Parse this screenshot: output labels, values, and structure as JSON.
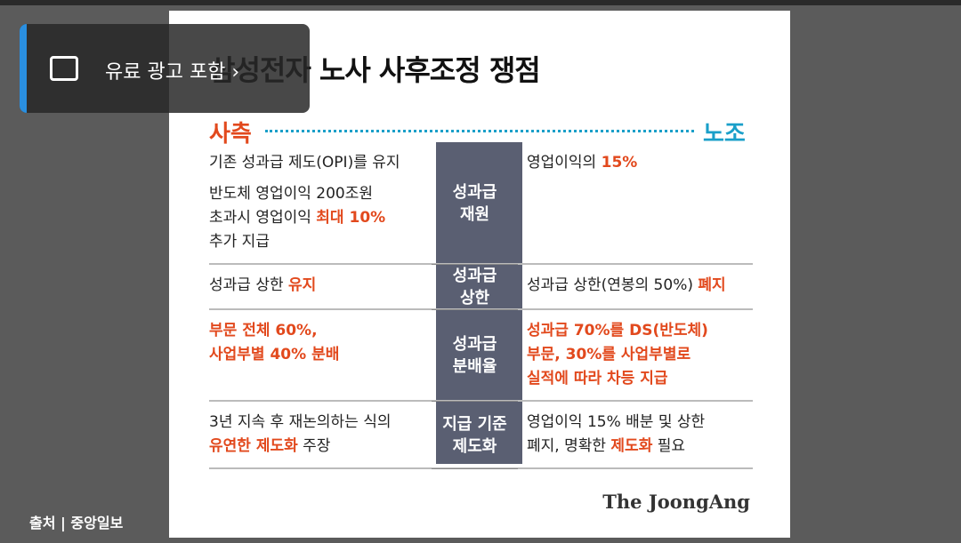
{
  "overlay": {
    "label": "유료 광고 포함"
  },
  "card": {
    "title": "삼성전자 노사 사후조정 쟁점",
    "left_header": "사측",
    "right_header": "노조",
    "rows": [
      {
        "label": [
          "성과급",
          "재원"
        ],
        "left": [
          [
            [
              "기존 성과급 제도(OPI)를 유지"
            ]
          ],
          [
            [
              "반도체 영업이익 200조원"
            ],
            [
              "초과시 영업이익 ",
              {
                "text": "최대 10%",
                "em": true
              }
            ],
            [
              "추가 지급"
            ]
          ]
        ],
        "right": [
          [
            [
              "영업이익의 ",
              {
                "text": "15%",
                "em": true
              }
            ]
          ]
        ]
      },
      {
        "label": [
          "성과급",
          "상한"
        ],
        "left": [
          [
            [
              "성과급 상한 ",
              {
                "text": "유지",
                "em": true
              }
            ]
          ]
        ],
        "right": [
          [
            [
              "성과급 상한(연봉의 50%) ",
              {
                "text": "폐지",
                "em": true
              }
            ]
          ]
        ]
      },
      {
        "label": [
          "성과급",
          "분배율"
        ],
        "left": [
          [
            [
              {
                "text": "부문 전체 60%,",
                "em": true
              }
            ],
            [
              {
                "text": "사업부별 40% 분배",
                "em": true
              }
            ]
          ]
        ],
        "right": [
          [
            [
              {
                "text": "성과급 70%를 DS(반도체)",
                "em": true
              }
            ],
            [
              {
                "text": "부문, 30%를 사업부별로",
                "em": true
              }
            ],
            [
              {
                "text": "실적에 따라 차등 지급",
                "em": true
              }
            ]
          ]
        ]
      },
      {
        "label": [
          "지급 기준",
          "제도화"
        ],
        "left": [
          [
            [
              "3년 지속 후 재논의하는 식의"
            ],
            [
              {
                "text": "유연한 제도화",
                "em": true
              },
              " 주장"
            ]
          ]
        ],
        "right": [
          [
            [
              "영업이익 15% 배분 및 상한"
            ],
            [
              "폐지, 명확한 ",
              {
                "text": "제도화",
                "em": true
              },
              " 필요"
            ]
          ]
        ]
      }
    ],
    "logo": "The JoongAng"
  },
  "footer": {
    "source": "출처 | 중앙일보"
  }
}
